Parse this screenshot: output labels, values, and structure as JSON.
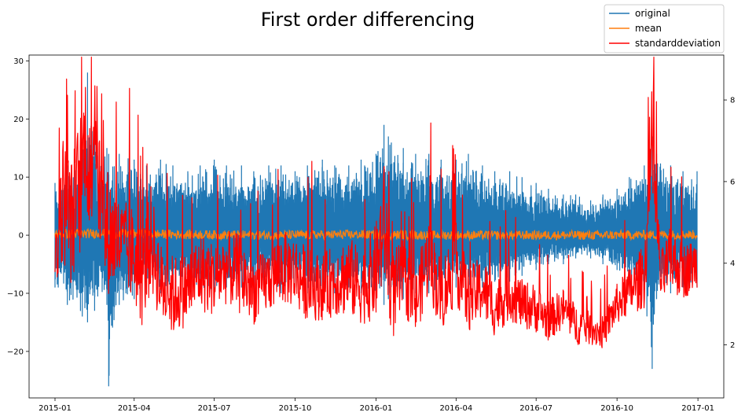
{
  "chart_data": {
    "type": "line",
    "title": "First order differencing",
    "x_tick_labels": [
      "2015-01",
      "2015-04",
      "2015-07",
      "2015-10",
      "2016-01",
      "2016-04",
      "2016-07",
      "2016-10",
      "2017-01"
    ],
    "x_range": [
      "2015-01-01",
      "2016-12-31"
    ],
    "y_left": {
      "ylim": [
        -28,
        31
      ],
      "ticks": [
        -20,
        -10,
        0,
        10,
        20,
        30
      ],
      "tick_labels": [
        "−20",
        "−10",
        "0",
        "10",
        "20",
        "30"
      ]
    },
    "y_right": {
      "ylim": [
        0.7,
        9.1
      ],
      "ticks": [
        2,
        4,
        6,
        8
      ],
      "tick_labels": [
        "2",
        "4",
        "6",
        "8"
      ]
    },
    "legend": {
      "placement": "top-right, above plot"
    },
    "grid": false,
    "series": [
      {
        "name": "original",
        "axis": "left",
        "color": "#1f77b4",
        "x": [
          "2015-01-01",
          "2015-01-15",
          "2015-02-01",
          "2015-02-07",
          "2015-02-15",
          "2015-03-01",
          "2015-03-03",
          "2015-03-15",
          "2015-04-01",
          "2015-04-15",
          "2015-05-01",
          "2015-05-15",
          "2015-06-01",
          "2015-06-15",
          "2015-07-01",
          "2015-07-15",
          "2015-08-01",
          "2015-08-15",
          "2015-09-01",
          "2015-09-15",
          "2015-10-01",
          "2015-10-15",
          "2015-11-01",
          "2015-11-15",
          "2015-12-01",
          "2015-12-15",
          "2016-01-01",
          "2016-01-10",
          "2016-01-15",
          "2016-02-01",
          "2016-02-15",
          "2016-03-01",
          "2016-03-15",
          "2016-04-01",
          "2016-04-15",
          "2016-05-01",
          "2016-05-15",
          "2016-06-01",
          "2016-06-15",
          "2016-07-01",
          "2016-07-15",
          "2016-08-01",
          "2016-08-15",
          "2016-09-01",
          "2016-09-15",
          "2016-10-01",
          "2016-10-15",
          "2016-11-01",
          "2016-11-10",
          "2016-11-15",
          "2016-12-01",
          "2016-12-15",
          "2016-12-31"
        ],
        "upper": [
          9,
          12,
          16,
          28,
          17,
          15,
          14,
          14,
          13,
          12,
          13,
          12,
          11,
          12,
          13,
          12,
          12,
          11,
          12,
          12,
          11,
          12,
          13,
          12,
          12,
          13,
          14,
          19,
          17,
          15,
          14,
          14,
          13,
          13,
          14,
          12,
          11,
          11,
          10,
          9,
          8,
          7,
          7,
          6,
          7,
          8,
          10,
          12,
          17,
          14,
          12,
          11,
          11
        ],
        "lower": [
          -9,
          -12,
          -14,
          -15,
          -13,
          -12,
          -26,
          -12,
          -11,
          -10,
          -10,
          -9,
          -9,
          -10,
          -10,
          -9,
          -9,
          -10,
          -9,
          -10,
          -9,
          -10,
          -10,
          -10,
          -9,
          -10,
          -10,
          -12,
          -11,
          -11,
          -10,
          -10,
          -10,
          -9,
          -9,
          -9,
          -8,
          -8,
          -7,
          -6,
          -5,
          -5,
          -4,
          -4,
          -5,
          -6,
          -8,
          -10,
          -23,
          -11,
          -10,
          -9,
          -9
        ]
      },
      {
        "name": "mean",
        "axis": "left",
        "color": "#ff7f0e",
        "x": [
          "2015-01-01",
          "2015-03-01",
          "2015-06-01",
          "2015-09-01",
          "2015-12-01",
          "2016-03-01",
          "2016-06-01",
          "2016-09-01",
          "2016-12-31"
        ],
        "values": [
          0.2,
          0.3,
          0.1,
          0.0,
          0.1,
          0.0,
          0.0,
          0.0,
          0.1
        ],
        "band": 0.8
      },
      {
        "name": "standarddeviation",
        "axis": "right",
        "color": "#ff0000",
        "x": [
          "2015-01-01",
          "2015-01-10",
          "2015-01-20",
          "2015-02-01",
          "2015-02-05",
          "2015-02-10",
          "2015-02-15",
          "2015-02-22",
          "2015-03-01",
          "2015-03-15",
          "2015-04-01",
          "2015-04-10",
          "2015-04-20",
          "2015-05-01",
          "2015-05-15",
          "2015-06-01",
          "2015-06-15",
          "2015-07-01",
          "2015-07-15",
          "2015-08-01",
          "2015-08-15",
          "2015-09-01",
          "2015-09-15",
          "2015-10-01",
          "2015-10-15",
          "2015-11-01",
          "2015-11-15",
          "2015-12-01",
          "2015-12-15",
          "2016-01-01",
          "2016-01-10",
          "2016-01-20",
          "2016-02-01",
          "2016-02-15",
          "2016-03-01",
          "2016-03-15",
          "2016-04-01",
          "2016-04-15",
          "2016-05-01",
          "2016-05-15",
          "2016-06-01",
          "2016-06-15",
          "2016-07-01",
          "2016-07-15",
          "2016-08-01",
          "2016-08-15",
          "2016-09-01",
          "2016-09-15",
          "2016-10-01",
          "2016-10-15",
          "2016-11-01",
          "2016-11-10",
          "2016-11-20",
          "2016-12-01",
          "2016-12-15",
          "2016-12-31"
        ],
        "values": [
          4.0,
          5.6,
          5.0,
          6.2,
          7.4,
          5.6,
          8.0,
          5.2,
          4.8,
          4.5,
          4.2,
          3.6,
          4.6,
          3.5,
          3.2,
          3.4,
          3.8,
          3.6,
          3.9,
          3.7,
          3.3,
          3.6,
          3.9,
          3.8,
          3.5,
          3.4,
          3.6,
          3.7,
          3.4,
          3.8,
          5.0,
          3.2,
          3.7,
          3.0,
          4.2,
          3.2,
          4.0,
          3.1,
          3.4,
          2.9,
          3.3,
          3.0,
          2.9,
          2.6,
          2.9,
          2.5,
          2.4,
          2.3,
          3.0,
          3.3,
          3.7,
          6.5,
          3.6,
          4.1,
          3.8,
          4.0
        ],
        "spread": [
          0.7,
          1.6,
          1.6,
          1.8,
          1.5,
          1.8,
          1.4,
          1.6,
          1.6,
          1.1,
          1.2,
          1.2,
          1.3,
          1.0,
          1.0,
          0.9,
          1.0,
          0.9,
          0.9,
          1.0,
          0.8,
          0.8,
          0.9,
          0.9,
          0.9,
          0.8,
          0.9,
          1.0,
          0.9,
          1.2,
          1.5,
          1.1,
          0.9,
          0.8,
          1.0,
          0.9,
          1.0,
          0.8,
          0.8,
          0.7,
          0.7,
          0.6,
          0.6,
          0.5,
          0.5,
          0.5,
          0.4,
          0.4,
          0.5,
          0.6,
          0.8,
          1.0,
          0.7,
          0.8,
          0.7,
          0.6
        ]
      }
    ]
  }
}
